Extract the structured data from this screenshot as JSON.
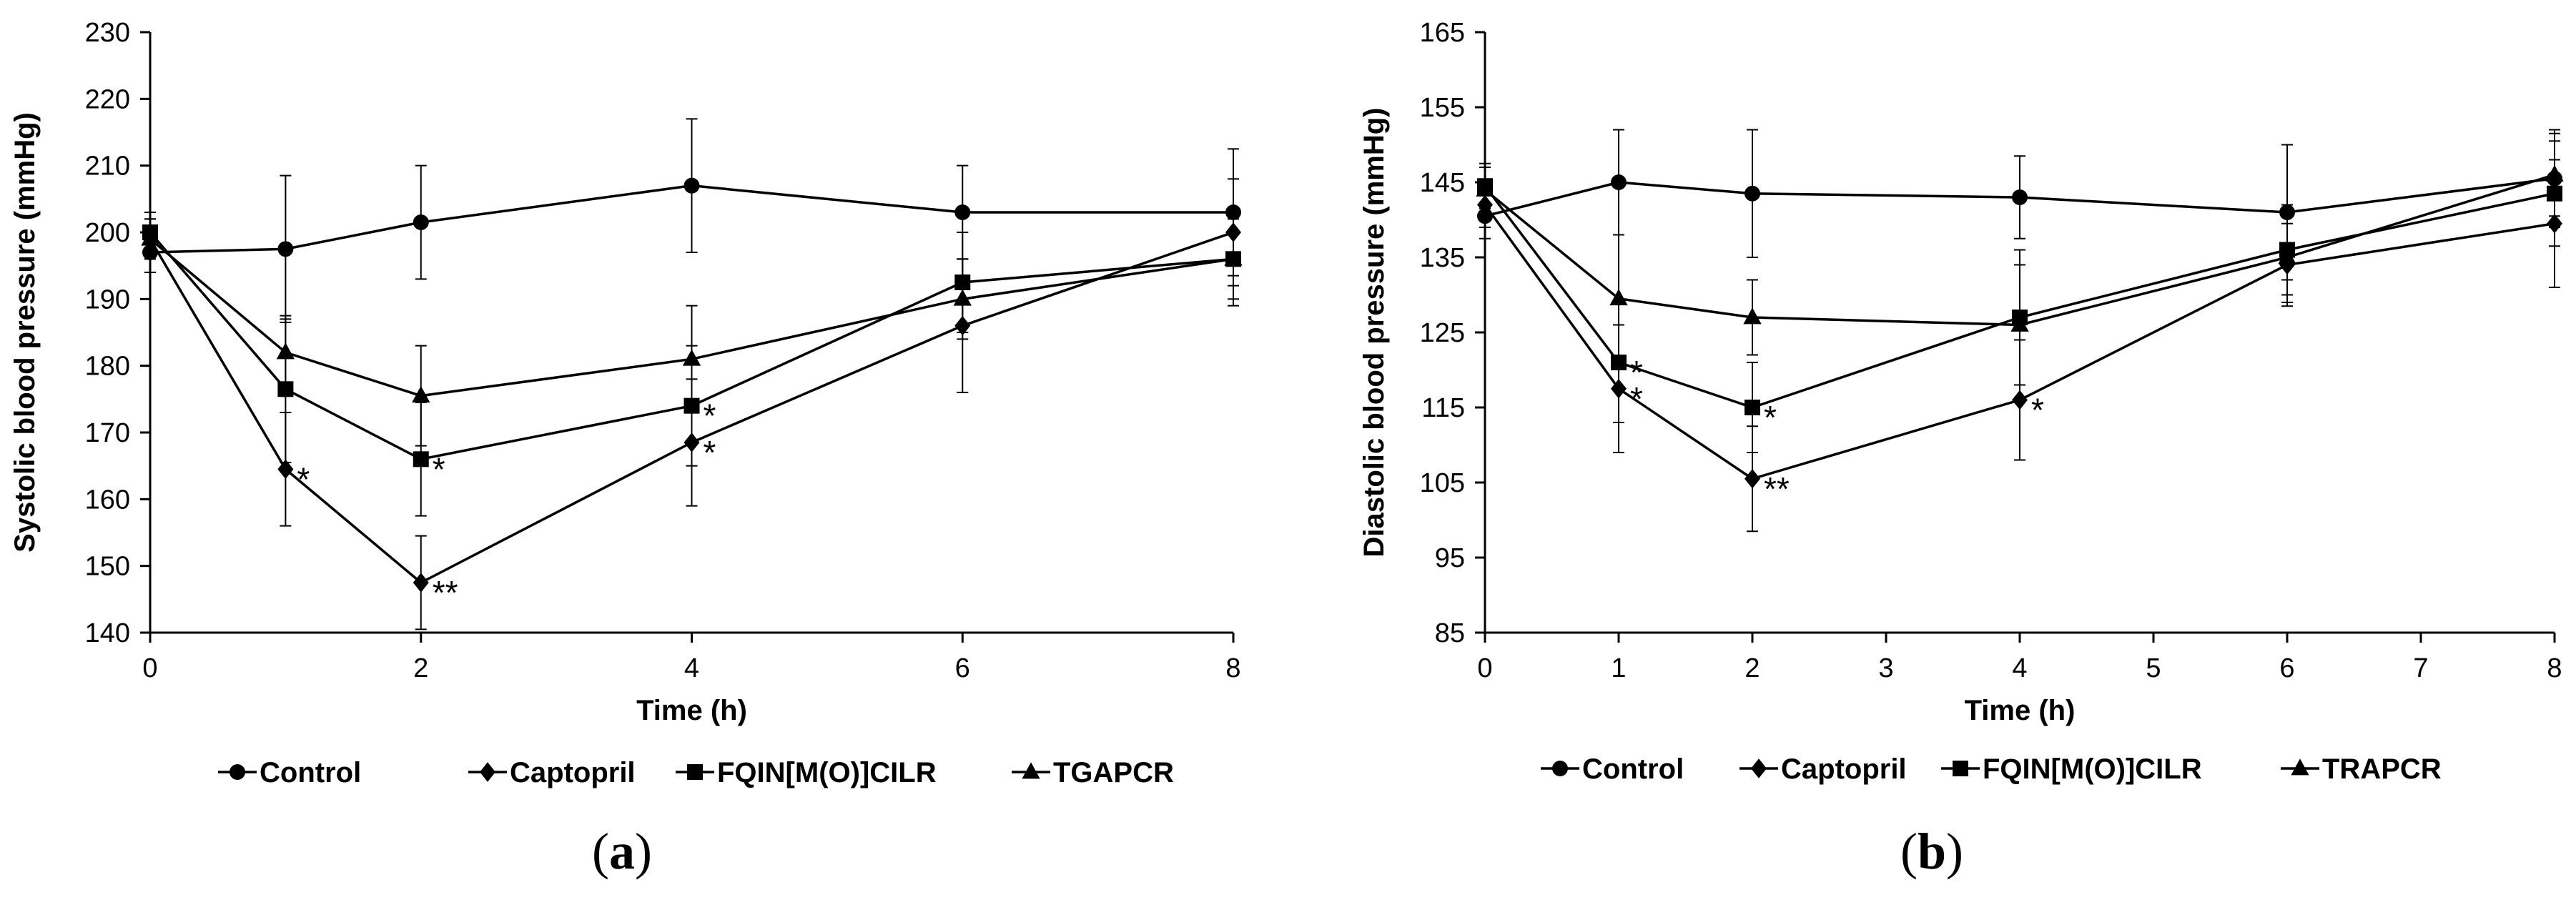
{
  "chart_data": [
    {
      "type": "line",
      "panel_label": "a",
      "xlabel": "Time (h)",
      "ylabel": "Systolic blood pressure (mmHg)",
      "x_ticks": [
        0,
        2,
        4,
        6,
        8
      ],
      "xlim": [
        0,
        8
      ],
      "ylim": [
        140,
        230
      ],
      "y_ticks": [
        140,
        150,
        160,
        170,
        180,
        190,
        200,
        210,
        220,
        230
      ],
      "grid": false,
      "legend": "bottom",
      "series": [
        {
          "name": "Control",
          "marker": "circle",
          "x": [
            0,
            1,
            2,
            4,
            6,
            8
          ],
          "y": [
            197,
            197.5,
            201.5,
            207,
            203,
            203
          ],
          "err": [
            3,
            11,
            8.5,
            10,
            7,
            9.5
          ]
        },
        {
          "name": "Captopril",
          "marker": "diamond",
          "x": [
            0,
            1,
            2,
            4,
            6,
            8
          ],
          "y": [
            199,
            164.5,
            147.5,
            168.5,
            186,
            200
          ],
          "err": [
            3,
            8.5,
            7,
            9.5,
            10,
            8
          ]
        },
        {
          "name": "FQIN[M(O)]CILR",
          "marker": "square",
          "x": [
            0,
            1,
            2,
            4,
            6,
            8
          ],
          "y": [
            200,
            176.5,
            166,
            174,
            192.5,
            196
          ],
          "err": [
            3,
            11,
            8.5,
            9,
            7.5,
            7
          ]
        },
        {
          "name": "TGAPCR",
          "marker": "triangle",
          "x": [
            0,
            1,
            2,
            4,
            6,
            8
          ],
          "y": [
            199,
            182,
            175.5,
            181,
            190,
            196
          ],
          "err": [
            3,
            5,
            7.5,
            8,
            6,
            6
          ]
        }
      ],
      "annotations": [
        {
          "text": "*",
          "x": 1,
          "y": 164.5
        },
        {
          "text": "*",
          "x": 2,
          "y": 166
        },
        {
          "text": "**",
          "x": 2,
          "y": 147.5
        },
        {
          "text": "*",
          "x": 4,
          "y": 174
        },
        {
          "text": "*",
          "x": 4,
          "y": 168.5
        }
      ]
    },
    {
      "type": "line",
      "panel_label": "b",
      "xlabel": "Time (h)",
      "ylabel": "Diastolic blood pressure (mmHg)",
      "x_ticks": [
        0,
        1,
        2,
        3,
        4,
        5,
        6,
        7,
        8
      ],
      "xlim": [
        0,
        8
      ],
      "ylim": [
        85,
        165
      ],
      "y_ticks": [
        85,
        95,
        105,
        115,
        125,
        135,
        145,
        155,
        165
      ],
      "grid": false,
      "legend": "bottom",
      "series": [
        {
          "name": "Control",
          "marker": "circle",
          "x": [
            0,
            1,
            2,
            4,
            6,
            8
          ],
          "y": [
            140.5,
            145,
            143.5,
            143,
            141,
            145.5
          ],
          "err": [
            3,
            7,
            8.5,
            5.5,
            9,
            6.5
          ]
        },
        {
          "name": "Captopril",
          "marker": "diamond",
          "x": [
            0,
            1,
            2,
            4,
            6,
            8
          ],
          "y": [
            142,
            117.5,
            105.5,
            116,
            134,
            139.5
          ],
          "err": [
            3,
            8.5,
            7,
            8,
            5.5,
            8.5
          ]
        },
        {
          "name": "FQIN[M(O)]CILR",
          "marker": "square",
          "x": [
            0,
            1,
            2,
            4,
            6,
            8
          ],
          "y": [
            144.5,
            121,
            115,
            127,
            136,
            143.5
          ],
          "err": [
            3,
            8,
            6,
            9,
            6,
            7
          ]
        },
        {
          "name": "TRAPCR",
          "marker": "triangle",
          "x": [
            0,
            1,
            2,
            4,
            6,
            8
          ],
          "y": [
            144,
            129.5,
            127,
            126,
            135,
            146
          ],
          "err": [
            3,
            8.5,
            5,
            8,
            6,
            5.5
          ]
        }
      ],
      "annotations": [
        {
          "text": "*",
          "x": 1,
          "y": 121
        },
        {
          "text": "*",
          "x": 1,
          "y": 117.5
        },
        {
          "text": "*",
          "x": 2,
          "y": 115
        },
        {
          "text": "**",
          "x": 2,
          "y": 105.5
        },
        {
          "text": "*",
          "x": 4,
          "y": 116
        }
      ]
    }
  ]
}
